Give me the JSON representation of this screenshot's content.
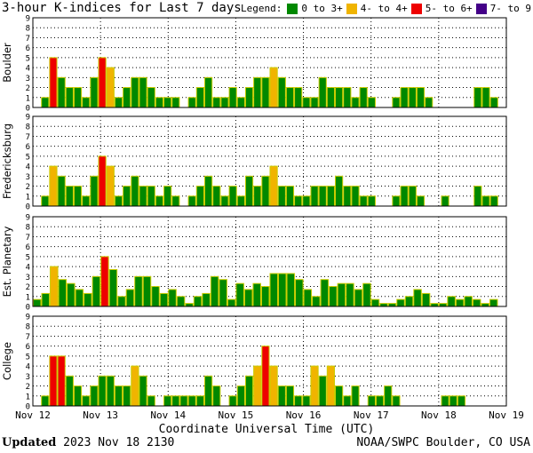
{
  "header": {
    "title": "3-hour K-indices for Last 7 days",
    "legend_label": "Legend:",
    "legend": [
      {
        "label": "0 to 3+",
        "color": "#008800"
      },
      {
        "label": "4- to 4+",
        "color": "#f0b400"
      },
      {
        "label": "5- to 6+",
        "color": "#ee0000"
      },
      {
        "label": "7- to 9",
        "color": "#440088"
      }
    ]
  },
  "footer": {
    "updated_label": "Updated",
    "updated_value": "2023 Nov 18 2130",
    "credit": "NOAA/SWPC Boulder, CO USA"
  },
  "chart_data": {
    "type": "bar",
    "title": "3-hour K-indices for Last 7 days",
    "xlabel": "Coordinate Universal Time (UTC)",
    "x_ticks": [
      "Nov 12",
      "Nov 13",
      "Nov 14",
      "Nov 15",
      "Nov 16",
      "Nov 17",
      "Nov 18",
      "Nov 19"
    ],
    "y_ticks": [
      0,
      1,
      2,
      3,
      4,
      5,
      6,
      7,
      8,
      9
    ],
    "ylim": [
      0,
      9
    ],
    "bar_outline_color": "#cccc00",
    "panels": [
      {
        "name": "Boulder",
        "values": [
          0,
          1,
          5,
          3,
          2,
          2,
          1,
          3,
          5,
          4,
          1,
          2,
          3,
          3,
          2,
          1,
          1,
          1,
          0,
          1,
          2,
          3,
          1,
          1,
          2,
          1,
          2,
          3,
          3,
          4,
          3,
          2,
          2,
          1,
          1,
          3,
          2,
          2,
          2,
          1,
          2,
          1,
          0,
          0,
          1,
          2,
          2,
          2,
          1,
          0,
          0,
          0,
          0,
          0,
          2,
          2,
          1,
          0
        ]
      },
      {
        "name": "Fredericksburg",
        "values": [
          0,
          1,
          4,
          3,
          2,
          2,
          1,
          3,
          5,
          4,
          1,
          2,
          3,
          2,
          2,
          1,
          2,
          1,
          0,
          1,
          2,
          3,
          2,
          1,
          2,
          1,
          3,
          2,
          3,
          4,
          2,
          2,
          1,
          1,
          2,
          2,
          2,
          3,
          2,
          2,
          1,
          1,
          0,
          0,
          1,
          2,
          2,
          1,
          0,
          0,
          1,
          0,
          0,
          0,
          2,
          1,
          1,
          0
        ]
      },
      {
        "name": "Est. Planetary",
        "values": [
          0.7,
          1.3,
          4,
          2.7,
          2.3,
          1.7,
          1.3,
          3,
          5,
          3.7,
          1,
          1.7,
          3,
          3,
          2,
          1.3,
          1.7,
          1,
          0.3,
          1,
          1.3,
          3,
          2.7,
          0.7,
          2.3,
          1.7,
          2.3,
          2,
          3.3,
          3.3,
          3.3,
          2.7,
          1.7,
          1,
          2.7,
          2,
          2.3,
          2.3,
          1.7,
          2.3,
          0.7,
          0.3,
          0.3,
          0.7,
          1,
          1.7,
          1.3,
          0.3,
          0.3,
          1,
          0.7,
          1,
          0.7,
          0.3,
          0.7,
          0
        ]
      },
      {
        "name": "College",
        "values": [
          0,
          1,
          5,
          5,
          3,
          2,
          1,
          2,
          3,
          3,
          2,
          2,
          4,
          3,
          1,
          0,
          1,
          1,
          1,
          1,
          1,
          3,
          2,
          0,
          1,
          2,
          3,
          4,
          6,
          4,
          2,
          2,
          1,
          1,
          4,
          3,
          4,
          2,
          1,
          2,
          0,
          1,
          1,
          2,
          1,
          0,
          0,
          0,
          0,
          0,
          1,
          1,
          1,
          0,
          0,
          0,
          0,
          0
        ]
      }
    ]
  }
}
